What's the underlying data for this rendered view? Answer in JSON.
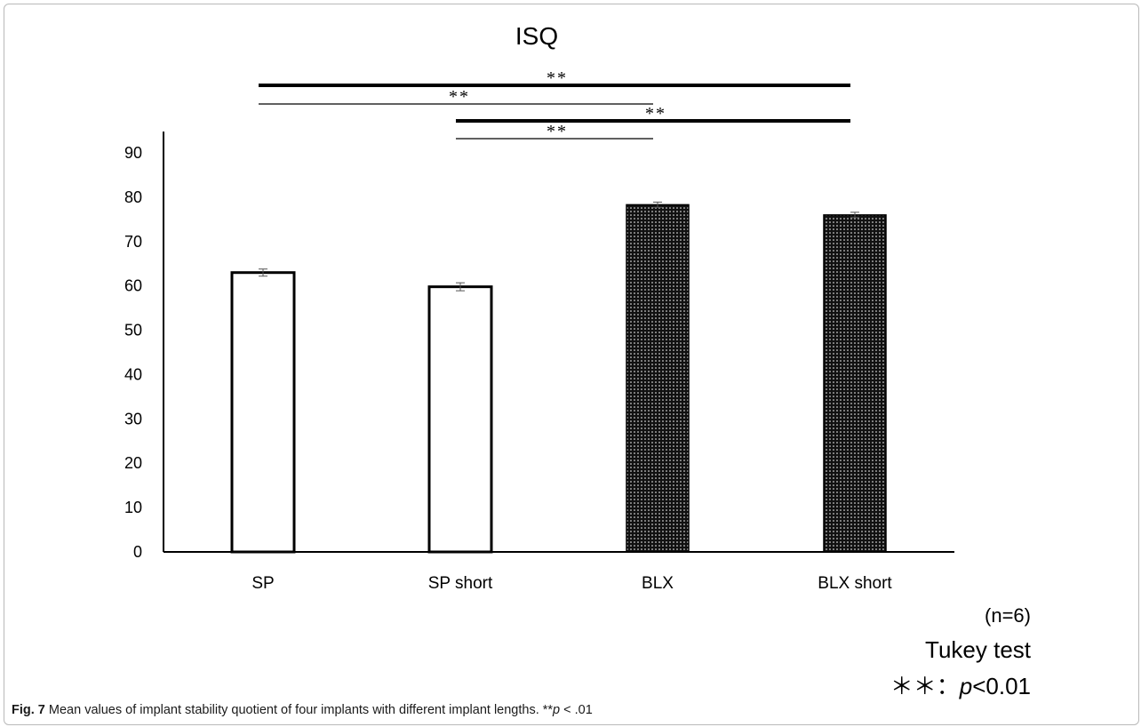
{
  "chart_data": {
    "type": "bar",
    "title": "ISQ",
    "categories": [
      "SP",
      "SP short",
      "BLX",
      "BLX short"
    ],
    "values": [
      63,
      59.8,
      78.3,
      76
    ],
    "errors": [
      0.8,
      0.9,
      0.6,
      0.6
    ],
    "fills": [
      "open",
      "open",
      "dotted",
      "dotted"
    ],
    "ylim": [
      0,
      90
    ],
    "yticks": [
      0,
      10,
      20,
      30,
      40,
      50,
      60,
      70,
      80,
      90
    ],
    "xlabel": "",
    "ylabel": "",
    "significance": [
      {
        "from": "SP",
        "to": "BLX short",
        "label": "**",
        "weight": "bold"
      },
      {
        "from": "SP",
        "to": "BLX",
        "label": "**",
        "weight": "thin"
      },
      {
        "from": "SP short",
        "to": "BLX short",
        "label": "**",
        "weight": "bold"
      },
      {
        "from": "SP short",
        "to": "BLX",
        "label": "**",
        "weight": "thin"
      }
    ]
  },
  "notes": {
    "n": "(n=6)",
    "test": "Tukey test",
    "p_prefix": "＊＊：",
    "p_var": "p",
    "p_suffix": "<0.01"
  },
  "caption": {
    "label": "Fig. 7",
    "text": " Mean values of implant stability quotient of four implants with different  implant lengths. **",
    "p_var": "p",
    "p_suffix": " < .01"
  }
}
